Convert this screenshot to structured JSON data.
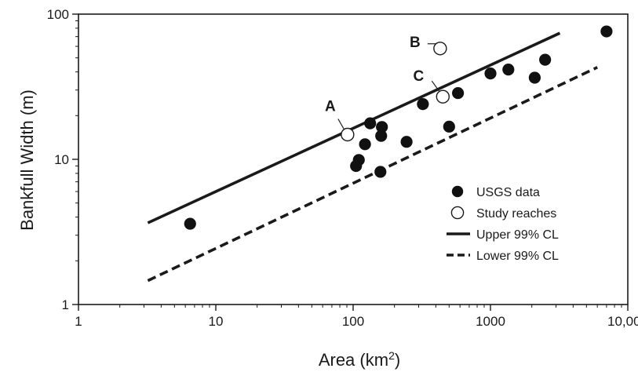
{
  "chart_data": {
    "type": "scatter",
    "xlabel": "Area (km",
    "xlabel_sup": "2",
    "xlabel_suffix": ")",
    "ylabel": "Bankfull Width (m)",
    "xscale": "log",
    "yscale": "log",
    "xlim": [
      1,
      10000
    ],
    "ylim": [
      1,
      100
    ],
    "x_ticks": [
      {
        "value": 1,
        "label": "1"
      },
      {
        "value": 10,
        "label": "10"
      },
      {
        "value": 100,
        "label": "100"
      },
      {
        "value": 1000,
        "label": "1000"
      },
      {
        "value": 10000,
        "label": "10,000"
      }
    ],
    "y_ticks": [
      {
        "value": 1,
        "label": "1"
      },
      {
        "value": 10,
        "label": "10"
      },
      {
        "value": 100,
        "label": "100"
      }
    ],
    "grid": false,
    "legend_position": "bottom-right",
    "series": [
      {
        "name": "USGS data",
        "marker": "filled-circle",
        "points": [
          [
            6.5,
            3.6
          ],
          [
            105,
            9.0
          ],
          [
            110,
            9.9
          ],
          [
            122,
            12.7
          ],
          [
            133,
            17.7
          ],
          [
            158,
            8.2
          ],
          [
            160,
            14.5
          ],
          [
            162,
            16.7
          ],
          [
            245,
            13.2
          ],
          [
            322,
            24.0
          ],
          [
            500,
            16.8
          ],
          [
            580,
            28.6
          ],
          [
            1000,
            39.0
          ],
          [
            1350,
            41.5
          ],
          [
            2100,
            36.5
          ],
          [
            2500,
            48.5
          ],
          [
            7000,
            76.0
          ]
        ]
      },
      {
        "name": "Study reaches",
        "marker": "open-circle",
        "points": [
          {
            "label": "A",
            "x": 91,
            "y": 14.8
          },
          {
            "label": "B",
            "x": 430,
            "y": 58.0
          },
          {
            "label": "C",
            "x": 450,
            "y": 27.0
          }
        ]
      },
      {
        "name": "Upper 99% CL",
        "line_style": "solid",
        "points": [
          [
            3.2,
            3.65
          ],
          [
            3200,
            74.0
          ]
        ]
      },
      {
        "name": "Lower 99% CL",
        "line_style": "dashed",
        "points": [
          [
            3.2,
            1.46
          ],
          [
            6000,
            43.0
          ]
        ]
      }
    ]
  }
}
